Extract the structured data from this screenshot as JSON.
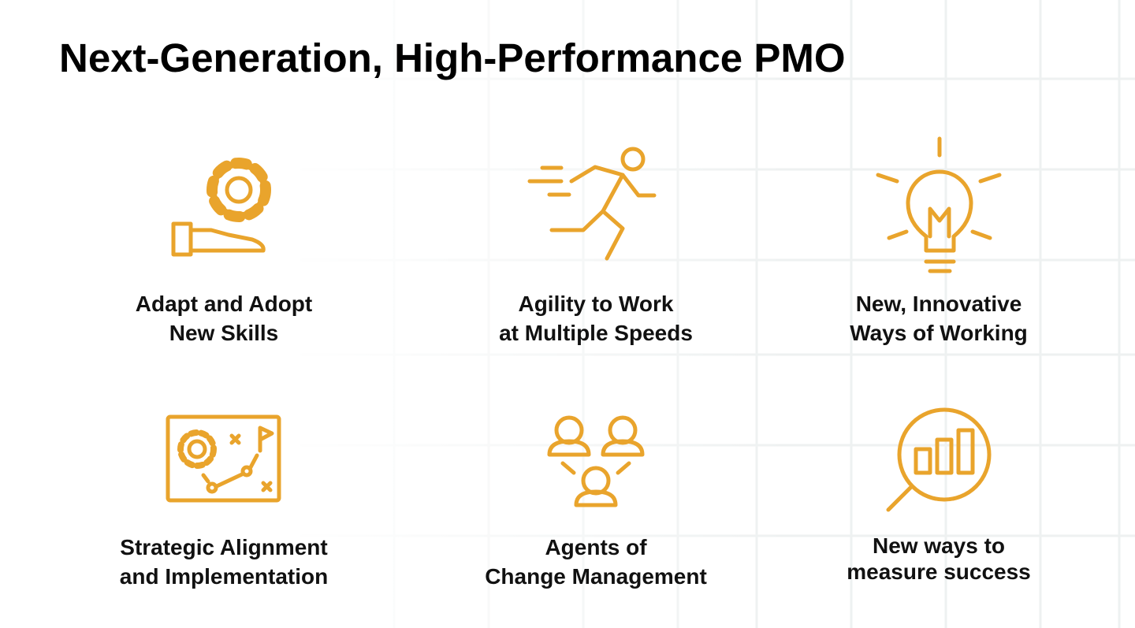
{
  "header": {
    "title": "Next-Generation, High-Performance PMO"
  },
  "items": [
    {
      "lines": [
        "Adapt and Adopt",
        "New Skills"
      ]
    },
    {
      "lines": [
        "Agility to Work",
        "at Multiple Speeds"
      ]
    },
    {
      "lines": [
        "New, Innovative",
        "Ways of Working"
      ]
    },
    {
      "lines": [
        "Strategic Alignment",
        "and Implementation"
      ]
    },
    {
      "lines": [
        "Agents of",
        "Change Management"
      ]
    },
    {
      "lines": [
        "New ways to",
        "measure success"
      ]
    }
  ]
}
